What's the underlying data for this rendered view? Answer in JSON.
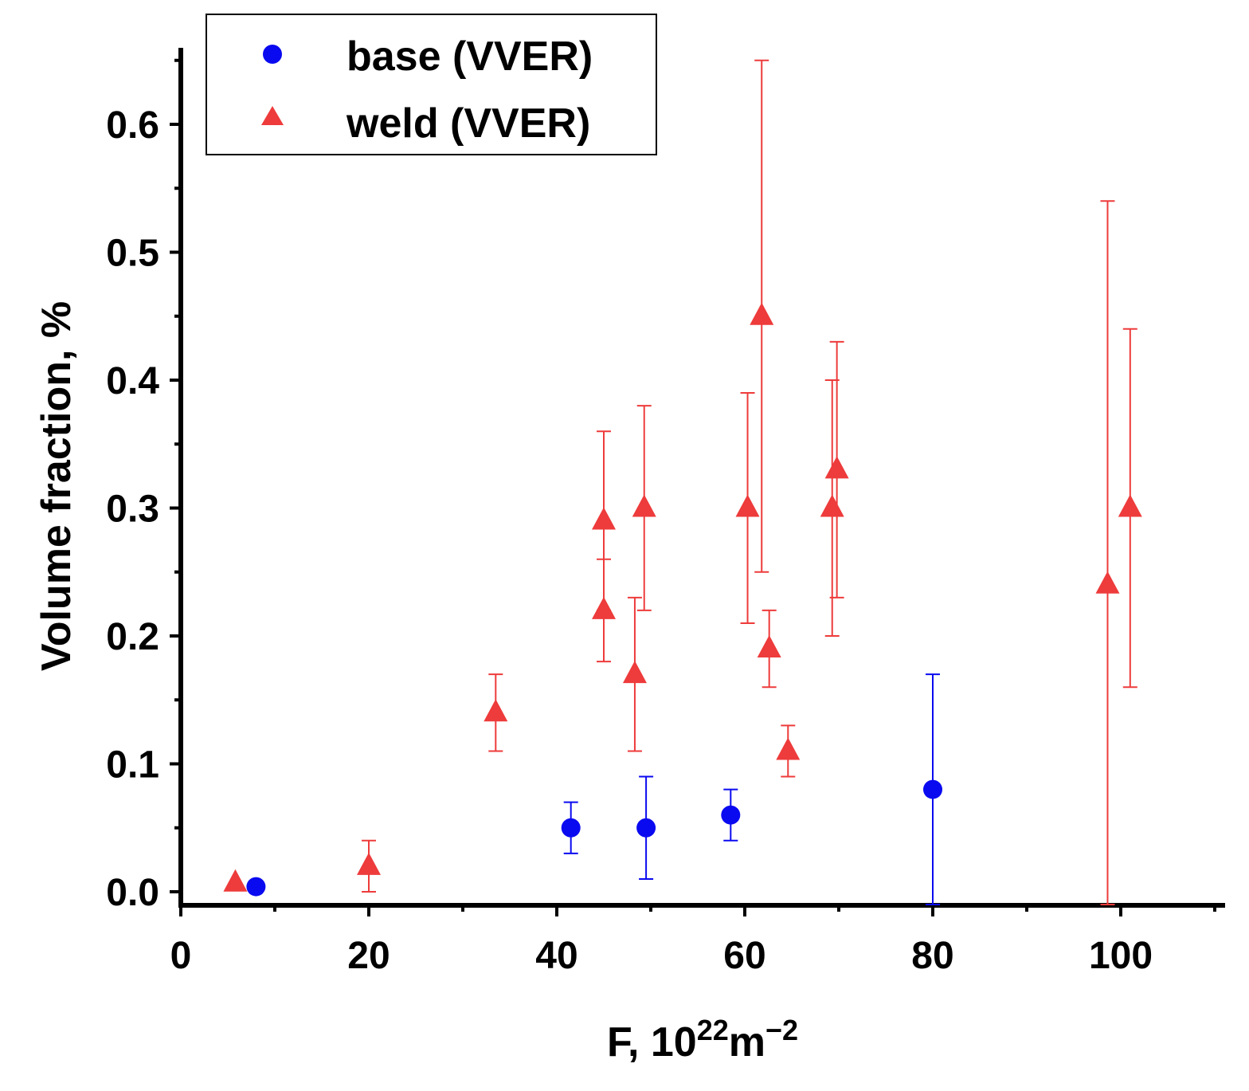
{
  "chart_data": {
    "type": "scatter",
    "title": "",
    "xlabel": {
      "base": "F, 10",
      "exp1": "22",
      "mid": "m",
      "exp2": "−2"
    },
    "ylabel": "Volume fraction, %",
    "xlim": [
      0,
      110
    ],
    "ylim": [
      -0.01,
      0.66
    ],
    "x_ticks": [
      0,
      20,
      40,
      60,
      80,
      100
    ],
    "x_tick_labels": [
      "0",
      "20",
      "40",
      "60",
      "80",
      "100"
    ],
    "y_ticks": [
      0.0,
      0.1,
      0.2,
      0.3,
      0.4,
      0.5,
      0.6
    ],
    "y_tick_labels": [
      "0.0",
      "0.1",
      "0.2",
      "0.3",
      "0.4",
      "0.5",
      "0.6"
    ],
    "legend_position": "top-left",
    "grid": false,
    "series": [
      {
        "name": "base (VVER)",
        "marker": "circle",
        "color": "#0a0af0",
        "points": [
          {
            "x": 8,
            "y": 0.004,
            "err_low": null,
            "err_high": null
          },
          {
            "x": 41.5,
            "y": 0.05,
            "err_low": 0.03,
            "err_high": 0.07
          },
          {
            "x": 49.5,
            "y": 0.05,
            "err_low": 0.01,
            "err_high": 0.09
          },
          {
            "x": 58.5,
            "y": 0.06,
            "err_low": 0.04,
            "err_high": 0.08
          },
          {
            "x": 80,
            "y": 0.08,
            "err_low": -0.01,
            "err_high": 0.17
          }
        ]
      },
      {
        "name": "weld (VVER)",
        "marker": "triangle",
        "color": "#ee3b3b",
        "points": [
          {
            "x": 5.8,
            "y": 0.007,
            "err_low": null,
            "err_high": null
          },
          {
            "x": 20,
            "y": 0.02,
            "err_low": 0.0,
            "err_high": 0.04
          },
          {
            "x": 33.5,
            "y": 0.14,
            "err_low": 0.11,
            "err_high": 0.17
          },
          {
            "x": 45,
            "y": 0.29,
            "err_low": 0.22,
            "err_high": 0.36
          },
          {
            "x": 45,
            "y": 0.22,
            "err_low": 0.18,
            "err_high": 0.26
          },
          {
            "x": 48.3,
            "y": 0.17,
            "err_low": 0.11,
            "err_high": 0.23
          },
          {
            "x": 49.3,
            "y": 0.3,
            "err_low": 0.22,
            "err_high": 0.38
          },
          {
            "x": 60.3,
            "y": 0.3,
            "err_low": 0.21,
            "err_high": 0.39
          },
          {
            "x": 61.8,
            "y": 0.45,
            "err_low": 0.25,
            "err_high": 0.65
          },
          {
            "x": 62.6,
            "y": 0.19,
            "err_low": 0.16,
            "err_high": 0.22
          },
          {
            "x": 64.6,
            "y": 0.11,
            "err_low": 0.09,
            "err_high": 0.13
          },
          {
            "x": 69.3,
            "y": 0.3,
            "err_low": 0.2,
            "err_high": 0.4
          },
          {
            "x": 69.8,
            "y": 0.33,
            "err_low": 0.23,
            "err_high": 0.43
          },
          {
            "x": 98.6,
            "y": 0.24,
            "err_low": -0.01,
            "err_high": 0.54
          },
          {
            "x": 101,
            "y": 0.3,
            "err_low": 0.16,
            "err_high": 0.44
          }
        ]
      }
    ]
  }
}
